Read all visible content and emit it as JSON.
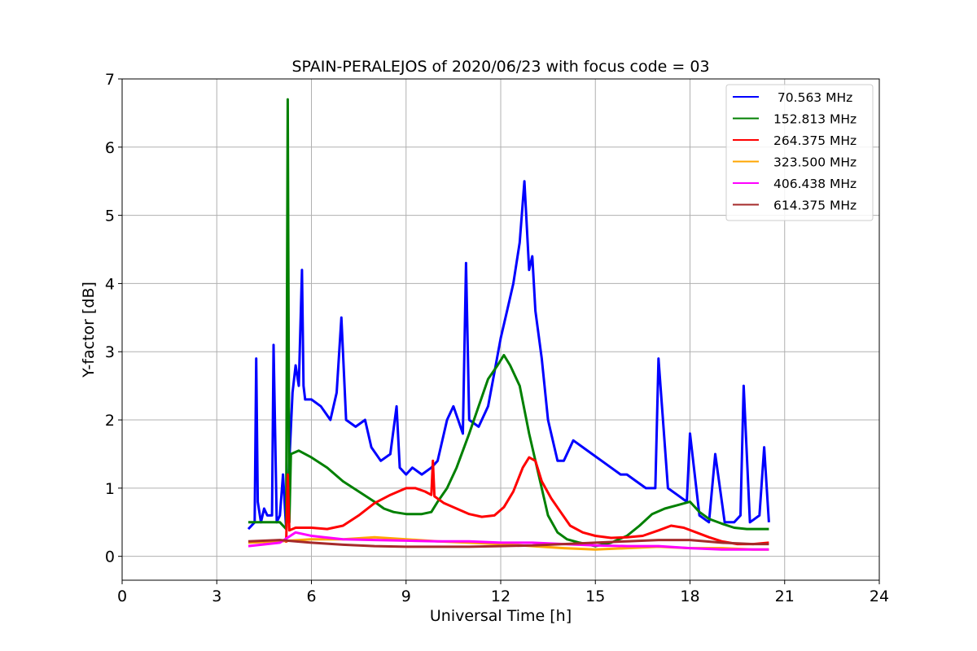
{
  "chart_data": {
    "type": "line",
    "title": "SPAIN-PERALEJOS of 2020/06/23 with focus code = 03",
    "xlabel": "Universal Time [h]",
    "ylabel": "Y-factor [dB]",
    "xlim": [
      0,
      24
    ],
    "ylim": [
      -0.35,
      7
    ],
    "xticks": [
      0,
      3,
      6,
      9,
      12,
      15,
      18,
      21,
      24
    ],
    "xtick_labels": [
      "0",
      "3",
      "6",
      "9",
      "12",
      "15",
      "18",
      "21",
      "24"
    ],
    "yticks": [
      0,
      1,
      2,
      3,
      4,
      5,
      6,
      7
    ],
    "ytick_labels": [
      "0",
      "1",
      "2",
      "3",
      "4",
      "5",
      "6",
      "7"
    ],
    "grid": true,
    "legend_position": "top-right",
    "series": [
      {
        "name": " 70.563 MHz",
        "color": "#0000ff",
        "x": [
          4.0,
          4.1,
          4.2,
          4.25,
          4.3,
          4.4,
          4.5,
          4.6,
          4.75,
          4.8,
          4.9,
          5.0,
          5.1,
          5.2,
          5.3,
          5.4,
          5.5,
          5.6,
          5.7,
          5.75,
          5.8,
          6.0,
          6.3,
          6.6,
          6.8,
          6.95,
          7.1,
          7.4,
          7.7,
          7.9,
          8.2,
          8.5,
          8.7,
          8.8,
          9.0,
          9.2,
          9.5,
          9.8,
          10.0,
          10.3,
          10.5,
          10.8,
          10.9,
          11.0,
          11.3,
          11.6,
          11.8,
          12.0,
          12.2,
          12.4,
          12.6,
          12.75,
          12.9,
          13.0,
          13.1,
          13.3,
          13.5,
          13.8,
          14.0,
          14.3,
          14.6,
          14.9,
          15.2,
          15.5,
          15.8,
          16.0,
          16.3,
          16.6,
          16.9,
          17.0,
          17.3,
          17.6,
          17.9,
          18.0,
          18.3,
          18.6,
          18.8,
          19.1,
          19.4,
          19.6,
          19.7,
          19.9,
          20.2,
          20.35,
          20.5
        ],
        "y": [
          0.4,
          0.45,
          0.5,
          2.9,
          0.8,
          0.5,
          0.7,
          0.6,
          0.6,
          3.1,
          0.5,
          0.6,
          1.2,
          0.4,
          1.4,
          2.4,
          2.8,
          2.5,
          4.2,
          2.5,
          2.3,
          2.3,
          2.2,
          2.0,
          2.4,
          3.5,
          2.0,
          1.9,
          2.0,
          1.6,
          1.4,
          1.5,
          2.2,
          1.3,
          1.2,
          1.3,
          1.2,
          1.3,
          1.4,
          2.0,
          2.2,
          1.8,
          4.3,
          2.0,
          1.9,
          2.2,
          2.7,
          3.2,
          3.6,
          4.0,
          4.6,
          5.5,
          4.2,
          4.4,
          3.6,
          2.9,
          2.0,
          1.4,
          1.4,
          1.7,
          1.6,
          1.5,
          1.4,
          1.3,
          1.2,
          1.2,
          1.1,
          1.0,
          1.0,
          2.9,
          1.0,
          0.9,
          0.8,
          1.8,
          0.6,
          0.5,
          1.5,
          0.5,
          0.5,
          0.6,
          2.5,
          0.5,
          0.6,
          1.6,
          0.5
        ]
      },
      {
        "name": "152.813 MHz",
        "color": "#008000",
        "x": [
          4.0,
          4.5,
          5.0,
          5.2,
          5.25,
          5.3,
          5.35,
          5.6,
          6.0,
          6.5,
          7.0,
          7.5,
          8.0,
          8.3,
          8.6,
          9.0,
          9.5,
          9.8,
          10.0,
          10.3,
          10.6,
          11.0,
          11.3,
          11.6,
          11.9,
          12.1,
          12.3,
          12.6,
          12.9,
          13.2,
          13.5,
          13.8,
          14.1,
          14.5,
          15.0,
          15.5,
          16.0,
          16.4,
          16.8,
          17.2,
          17.6,
          18.0,
          18.3,
          18.6,
          19.0,
          19.4,
          19.8,
          20.2,
          20.5
        ],
        "y": [
          0.5,
          0.5,
          0.5,
          0.4,
          6.7,
          0.5,
          1.5,
          1.55,
          1.45,
          1.3,
          1.1,
          0.95,
          0.8,
          0.7,
          0.65,
          0.62,
          0.62,
          0.65,
          0.8,
          1.0,
          1.3,
          1.8,
          2.2,
          2.6,
          2.8,
          2.95,
          2.8,
          2.5,
          1.8,
          1.2,
          0.6,
          0.35,
          0.25,
          0.2,
          0.15,
          0.2,
          0.3,
          0.45,
          0.62,
          0.7,
          0.75,
          0.8,
          0.65,
          0.55,
          0.48,
          0.42,
          0.4,
          0.4,
          0.4
        ]
      },
      {
        "name": "264.375 MHz",
        "color": "#ff0000",
        "x": [
          5.2,
          5.25,
          5.3,
          5.5,
          6.0,
          6.5,
          7.0,
          7.5,
          8.0,
          8.5,
          9.0,
          9.3,
          9.6,
          9.8,
          9.85,
          9.9,
          10.2,
          10.6,
          11.0,
          11.4,
          11.8,
          12.1,
          12.4,
          12.7,
          12.9,
          13.1,
          13.3,
          13.6,
          13.9,
          14.2,
          14.6,
          15.0,
          15.5,
          16.0,
          16.5,
          17.0,
          17.4,
          17.8,
          18.2,
          18.6,
          19.0,
          19.5,
          20.0,
          20.5
        ],
        "y": [
          0.2,
          1.2,
          0.38,
          0.42,
          0.42,
          0.4,
          0.45,
          0.6,
          0.78,
          0.9,
          1.0,
          1.0,
          0.95,
          0.9,
          1.4,
          0.88,
          0.78,
          0.7,
          0.62,
          0.58,
          0.6,
          0.72,
          0.95,
          1.3,
          1.45,
          1.4,
          1.1,
          0.85,
          0.65,
          0.45,
          0.35,
          0.3,
          0.27,
          0.28,
          0.3,
          0.38,
          0.45,
          0.42,
          0.35,
          0.28,
          0.22,
          0.18,
          0.18,
          0.2
        ]
      },
      {
        "name": "323.500 MHz",
        "color": "#ffa500",
        "x": [
          4.0,
          5.0,
          6.0,
          7.0,
          8.0,
          9.0,
          10.0,
          11.0,
          12.0,
          13.0,
          14.0,
          15.0,
          16.0,
          17.0,
          18.0,
          19.0,
          20.0,
          20.5
        ],
        "y": [
          0.2,
          0.22,
          0.25,
          0.25,
          0.28,
          0.25,
          0.22,
          0.2,
          0.18,
          0.15,
          0.12,
          0.1,
          0.12,
          0.14,
          0.12,
          0.12,
          0.1,
          0.1
        ]
      },
      {
        "name": "406.438 MHz",
        "color": "#ff00ff",
        "x": [
          4.0,
          5.0,
          5.5,
          6.0,
          7.0,
          8.0,
          9.0,
          10.0,
          11.0,
          12.0,
          13.0,
          14.0,
          15.0,
          16.0,
          17.0,
          18.0,
          19.0,
          20.0,
          20.5
        ],
        "y": [
          0.15,
          0.2,
          0.35,
          0.3,
          0.25,
          0.24,
          0.23,
          0.22,
          0.22,
          0.2,
          0.2,
          0.18,
          0.16,
          0.15,
          0.15,
          0.12,
          0.1,
          0.1,
          0.1
        ]
      },
      {
        "name": "614.375 MHz",
        "color": "#a52a2a",
        "x": [
          4.0,
          5.0,
          6.0,
          7.0,
          8.0,
          9.0,
          10.0,
          11.0,
          12.0,
          13.0,
          14.0,
          15.0,
          16.0,
          17.0,
          18.0,
          19.0,
          20.0,
          20.5
        ],
        "y": [
          0.22,
          0.24,
          0.2,
          0.17,
          0.15,
          0.14,
          0.14,
          0.14,
          0.15,
          0.16,
          0.18,
          0.2,
          0.22,
          0.24,
          0.24,
          0.2,
          0.18,
          0.18
        ]
      }
    ]
  }
}
